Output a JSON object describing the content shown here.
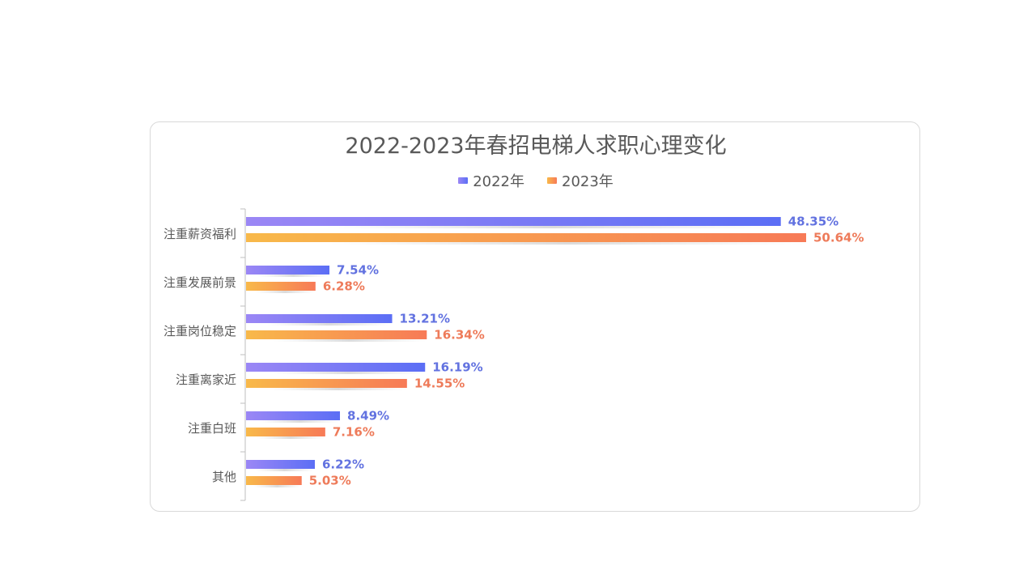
{
  "chart_data": {
    "type": "bar",
    "orientation": "horizontal",
    "title": "2022-2023年春招电梯人求职心理变化",
    "categories": [
      "注重薪资福利",
      "注重发展前景",
      "注重岗位稳定",
      "注重离家近",
      "注重白班",
      "其他"
    ],
    "series": [
      {
        "name": "2022年",
        "values": [
          48.35,
          7.54,
          13.21,
          16.19,
          8.49,
          6.22
        ],
        "labels": [
          "48.35%",
          "7.54%",
          "13.21%",
          "16.19%",
          "8.49%",
          "6.22%"
        ],
        "color_start": "#9b87f5",
        "color_end": "#5b6ef5",
        "label_color": "#6272e0"
      },
      {
        "name": "2023年",
        "values": [
          50.64,
          6.28,
          16.34,
          14.55,
          7.16,
          5.03
        ],
        "labels": [
          "50.64%",
          "6.28%",
          "16.34%",
          "14.55%",
          "7.16%",
          "5.03%"
        ],
        "color_start": "#f8b94a",
        "color_end": "#f77a57",
        "label_color": "#ee7b5a"
      }
    ],
    "xlim": [
      0,
      50.64
    ],
    "legend_position": "top-center",
    "grid": false
  }
}
